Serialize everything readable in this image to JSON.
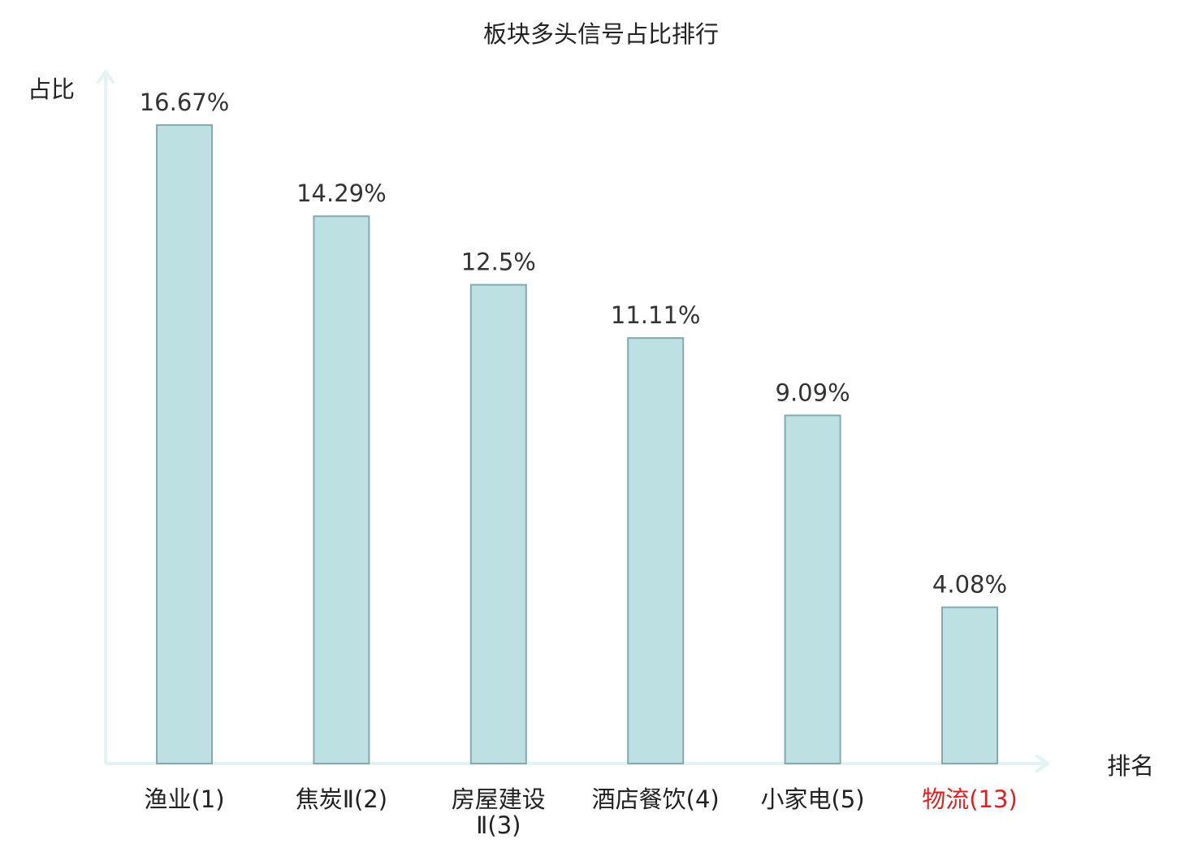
{
  "chart_data": {
    "type": "bar",
    "title": "板块多头信号占比排行",
    "ylabel": "占比",
    "xlabel": "排名",
    "ylim": [
      0,
      17.5
    ],
    "grid": false,
    "categories": [
      [
        "渔业(1)"
      ],
      [
        "焦炭Ⅱ(2)"
      ],
      [
        "房屋建设",
        "Ⅱ(3)"
      ],
      [
        "酒店餐饮(4)"
      ],
      [
        "小家电(5)"
      ],
      [
        "物流(13)"
      ]
    ],
    "values": [
      16.67,
      14.29,
      12.5,
      11.11,
      9.09,
      4.08
    ],
    "value_labels": [
      "16.67%",
      "14.29%",
      "12.5%",
      "11.11%",
      "9.09%",
      "4.08%"
    ],
    "highlight_index": 5,
    "colors": {
      "bar_fill": "#bde0e3",
      "bar_stroke": "#86a9ad",
      "axis": "#e2f3f1",
      "text": "#222222",
      "value_label": "#333333",
      "highlight": "#e02020"
    }
  }
}
